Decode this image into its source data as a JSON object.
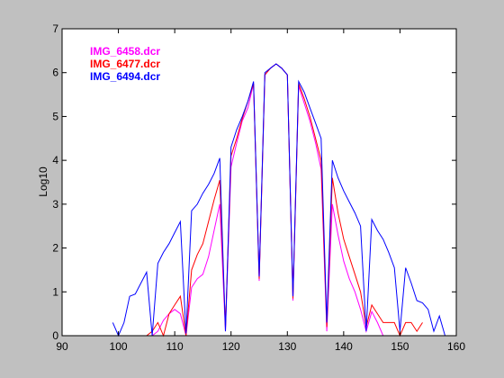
{
  "figure": {
    "background": "#c0c0c0",
    "axes_background": "#ffffff"
  },
  "chart_data": {
    "type": "line",
    "title": "",
    "xlabel": "",
    "ylabel": "Log10",
    "xlim": [
      90,
      160
    ],
    "ylim": [
      0,
      7
    ],
    "xticks": [
      90,
      100,
      110,
      120,
      130,
      140,
      150,
      160
    ],
    "yticks": [
      0,
      1,
      2,
      3,
      4,
      5,
      6,
      7
    ],
    "grid": false,
    "legend_position": "top-left",
    "series": [
      {
        "name": "IMG_6458.dcr",
        "color": "#ff00ff",
        "points": [
          [
            105,
            0
          ],
          [
            106,
            0
          ],
          [
            107,
            0.1
          ],
          [
            108,
            0.35
          ],
          [
            109,
            0.5
          ],
          [
            110,
            0.6
          ],
          [
            111,
            0.5
          ],
          [
            112,
            0
          ],
          [
            113,
            1.1
          ],
          [
            114,
            1.3
          ],
          [
            115,
            1.4
          ],
          [
            116,
            1.8
          ],
          [
            117,
            2.4
          ],
          [
            118,
            3.0
          ],
          [
            119,
            0.1
          ],
          [
            120,
            3.85
          ],
          [
            121,
            4.4
          ],
          [
            122,
            4.9
          ],
          [
            123,
            5.2
          ],
          [
            124,
            5.75
          ],
          [
            125,
            1.25
          ],
          [
            126,
            5.95
          ],
          [
            127,
            6.1
          ],
          [
            128,
            6.2
          ],
          [
            129,
            6.1
          ],
          [
            130,
            5.95
          ],
          [
            131,
            0.8
          ],
          [
            132,
            5.7
          ],
          [
            133,
            5.3
          ],
          [
            134,
            4.9
          ],
          [
            135,
            4.4
          ],
          [
            136,
            3.8
          ],
          [
            137,
            0.1
          ],
          [
            138,
            3.0
          ],
          [
            139,
            2.3
          ],
          [
            140,
            1.7
          ],
          [
            141,
            1.3
          ],
          [
            142,
            1.0
          ],
          [
            143,
            0.6
          ],
          [
            144,
            0.1
          ],
          [
            145,
            0.55
          ],
          [
            146,
            0.3
          ],
          [
            147,
            0
          ],
          [
            148,
            0
          ]
        ]
      },
      {
        "name": "IMG_6477.dcr",
        "color": "#ff0000",
        "points": [
          [
            105,
            0
          ],
          [
            106,
            0.1
          ],
          [
            107,
            0.3
          ],
          [
            108,
            0
          ],
          [
            109,
            0.5
          ],
          [
            110,
            0.7
          ],
          [
            111,
            0.9
          ],
          [
            112,
            0
          ],
          [
            113,
            1.5
          ],
          [
            114,
            1.85
          ],
          [
            115,
            2.1
          ],
          [
            116,
            2.6
          ],
          [
            117,
            3.1
          ],
          [
            118,
            3.55
          ],
          [
            119,
            0.2
          ],
          [
            120,
            4.1
          ],
          [
            121,
            4.5
          ],
          [
            122,
            4.95
          ],
          [
            123,
            5.35
          ],
          [
            124,
            5.75
          ],
          [
            125,
            1.3
          ],
          [
            126,
            5.95
          ],
          [
            127,
            6.1
          ],
          [
            128,
            6.2
          ],
          [
            129,
            6.1
          ],
          [
            130,
            5.95
          ],
          [
            131,
            0.85
          ],
          [
            132,
            5.75
          ],
          [
            133,
            5.4
          ],
          [
            134,
            5.0
          ],
          [
            135,
            4.5
          ],
          [
            136,
            4.0
          ],
          [
            137,
            0.2
          ],
          [
            138,
            3.6
          ],
          [
            139,
            2.8
          ],
          [
            140,
            2.2
          ],
          [
            141,
            1.8
          ],
          [
            142,
            1.4
          ],
          [
            143,
            1.0
          ],
          [
            144,
            0.2
          ],
          [
            145,
            0.7
          ],
          [
            146,
            0.5
          ],
          [
            147,
            0.3
          ],
          [
            148,
            0.3
          ],
          [
            149,
            0.3
          ],
          [
            150,
            0
          ],
          [
            151,
            0.3
          ],
          [
            152,
            0.3
          ],
          [
            153,
            0.1
          ],
          [
            154,
            0.3
          ]
        ]
      },
      {
        "name": "IMG_6494.dcr",
        "color": "#0000ff",
        "points": [
          [
            99,
            0.3
          ],
          [
            100,
            0
          ],
          [
            101,
            0.3
          ],
          [
            102,
            0.9
          ],
          [
            103,
            0.95
          ],
          [
            104,
            1.2
          ],
          [
            105,
            1.45
          ],
          [
            106,
            0
          ],
          [
            107,
            1.65
          ],
          [
            108,
            1.9
          ],
          [
            109,
            2.1
          ],
          [
            110,
            2.35
          ],
          [
            111,
            2.6
          ],
          [
            112,
            0.05
          ],
          [
            113,
            2.85
          ],
          [
            114,
            3.0
          ],
          [
            115,
            3.25
          ],
          [
            116,
            3.45
          ],
          [
            117,
            3.7
          ],
          [
            118,
            4.05
          ],
          [
            119,
            0.1
          ],
          [
            120,
            4.3
          ],
          [
            121,
            4.7
          ],
          [
            122,
            5.0
          ],
          [
            123,
            5.35
          ],
          [
            124,
            5.8
          ],
          [
            125,
            1.35
          ],
          [
            126,
            6.0
          ],
          [
            127,
            6.1
          ],
          [
            128,
            6.2
          ],
          [
            129,
            6.1
          ],
          [
            130,
            5.95
          ],
          [
            131,
            0.9
          ],
          [
            132,
            5.8
          ],
          [
            133,
            5.55
          ],
          [
            134,
            5.2
          ],
          [
            135,
            4.85
          ],
          [
            136,
            4.5
          ],
          [
            137,
            0.3
          ],
          [
            138,
            4.0
          ],
          [
            139,
            3.6
          ],
          [
            140,
            3.3
          ],
          [
            141,
            3.05
          ],
          [
            142,
            2.8
          ],
          [
            143,
            2.5
          ],
          [
            144,
            0.1
          ],
          [
            145,
            2.65
          ],
          [
            146,
            2.4
          ],
          [
            147,
            2.2
          ],
          [
            148,
            1.9
          ],
          [
            149,
            1.55
          ],
          [
            150,
            0.1
          ],
          [
            151,
            1.55
          ],
          [
            152,
            1.2
          ],
          [
            153,
            0.8
          ],
          [
            154,
            0.75
          ],
          [
            155,
            0.6
          ],
          [
            156,
            0.1
          ],
          [
            157,
            0.45
          ],
          [
            158,
            0
          ]
        ]
      }
    ]
  }
}
